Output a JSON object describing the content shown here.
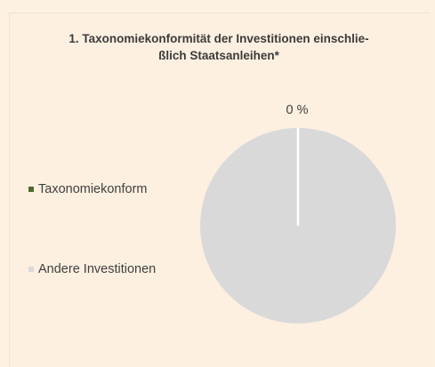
{
  "chart_data": {
    "type": "pie",
    "title_lines": [
      "1. Taxonomiekonformität der Investitionen einschlie-",
      "ßlich Staatsanleihen*"
    ],
    "categories": [
      "Taxonomiekonform",
      "Andere Investitionen"
    ],
    "values": [
      0,
      100
    ],
    "unit": "%",
    "data_labels": [
      "0 %",
      ""
    ],
    "colors": [
      "#4e6a2e",
      "#d9d9d9"
    ],
    "legend_position": "left"
  }
}
